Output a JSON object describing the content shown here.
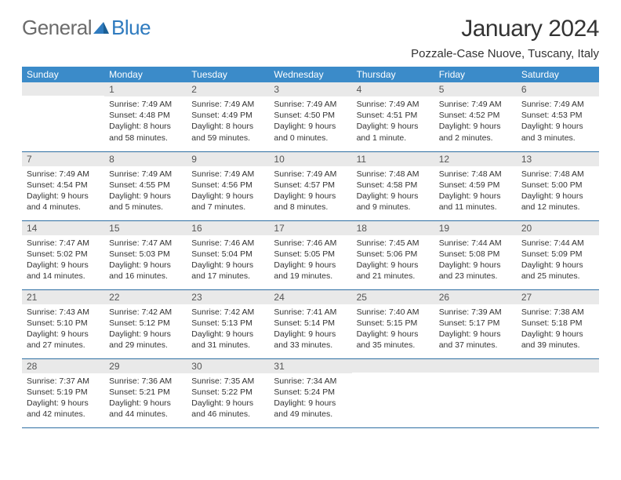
{
  "brand": {
    "part1": "General",
    "part2": "Blue"
  },
  "title": "January 2024",
  "location": "Pozzale-Case Nuove, Tuscany, Italy",
  "colors": {
    "header_bg": "#3b8bc9",
    "header_text": "#ffffff",
    "daynum_bg": "#e9e9e9",
    "row_border": "#2f6fa3",
    "logo_gray": "#6b6b6b",
    "logo_blue": "#2f7bbf",
    "text": "#333333",
    "background": "#ffffff"
  },
  "typography": {
    "title_fontsize": 30,
    "location_fontsize": 15,
    "dayhead_fontsize": 12,
    "cell_fontsize": 10.5
  },
  "day_headers": [
    "Sunday",
    "Monday",
    "Tuesday",
    "Wednesday",
    "Thursday",
    "Friday",
    "Saturday"
  ],
  "weeks": [
    [
      {
        "n": "",
        "sr": "",
        "ss": "",
        "dl": ""
      },
      {
        "n": "1",
        "sr": "Sunrise: 7:49 AM",
        "ss": "Sunset: 4:48 PM",
        "dl": "Daylight: 8 hours and 58 minutes."
      },
      {
        "n": "2",
        "sr": "Sunrise: 7:49 AM",
        "ss": "Sunset: 4:49 PM",
        "dl": "Daylight: 8 hours and 59 minutes."
      },
      {
        "n": "3",
        "sr": "Sunrise: 7:49 AM",
        "ss": "Sunset: 4:50 PM",
        "dl": "Daylight: 9 hours and 0 minutes."
      },
      {
        "n": "4",
        "sr": "Sunrise: 7:49 AM",
        "ss": "Sunset: 4:51 PM",
        "dl": "Daylight: 9 hours and 1 minute."
      },
      {
        "n": "5",
        "sr": "Sunrise: 7:49 AM",
        "ss": "Sunset: 4:52 PM",
        "dl": "Daylight: 9 hours and 2 minutes."
      },
      {
        "n": "6",
        "sr": "Sunrise: 7:49 AM",
        "ss": "Sunset: 4:53 PM",
        "dl": "Daylight: 9 hours and 3 minutes."
      }
    ],
    [
      {
        "n": "7",
        "sr": "Sunrise: 7:49 AM",
        "ss": "Sunset: 4:54 PM",
        "dl": "Daylight: 9 hours and 4 minutes."
      },
      {
        "n": "8",
        "sr": "Sunrise: 7:49 AM",
        "ss": "Sunset: 4:55 PM",
        "dl": "Daylight: 9 hours and 5 minutes."
      },
      {
        "n": "9",
        "sr": "Sunrise: 7:49 AM",
        "ss": "Sunset: 4:56 PM",
        "dl": "Daylight: 9 hours and 7 minutes."
      },
      {
        "n": "10",
        "sr": "Sunrise: 7:49 AM",
        "ss": "Sunset: 4:57 PM",
        "dl": "Daylight: 9 hours and 8 minutes."
      },
      {
        "n": "11",
        "sr": "Sunrise: 7:48 AM",
        "ss": "Sunset: 4:58 PM",
        "dl": "Daylight: 9 hours and 9 minutes."
      },
      {
        "n": "12",
        "sr": "Sunrise: 7:48 AM",
        "ss": "Sunset: 4:59 PM",
        "dl": "Daylight: 9 hours and 11 minutes."
      },
      {
        "n": "13",
        "sr": "Sunrise: 7:48 AM",
        "ss": "Sunset: 5:00 PM",
        "dl": "Daylight: 9 hours and 12 minutes."
      }
    ],
    [
      {
        "n": "14",
        "sr": "Sunrise: 7:47 AM",
        "ss": "Sunset: 5:02 PM",
        "dl": "Daylight: 9 hours and 14 minutes."
      },
      {
        "n": "15",
        "sr": "Sunrise: 7:47 AM",
        "ss": "Sunset: 5:03 PM",
        "dl": "Daylight: 9 hours and 16 minutes."
      },
      {
        "n": "16",
        "sr": "Sunrise: 7:46 AM",
        "ss": "Sunset: 5:04 PM",
        "dl": "Daylight: 9 hours and 17 minutes."
      },
      {
        "n": "17",
        "sr": "Sunrise: 7:46 AM",
        "ss": "Sunset: 5:05 PM",
        "dl": "Daylight: 9 hours and 19 minutes."
      },
      {
        "n": "18",
        "sr": "Sunrise: 7:45 AM",
        "ss": "Sunset: 5:06 PM",
        "dl": "Daylight: 9 hours and 21 minutes."
      },
      {
        "n": "19",
        "sr": "Sunrise: 7:44 AM",
        "ss": "Sunset: 5:08 PM",
        "dl": "Daylight: 9 hours and 23 minutes."
      },
      {
        "n": "20",
        "sr": "Sunrise: 7:44 AM",
        "ss": "Sunset: 5:09 PM",
        "dl": "Daylight: 9 hours and 25 minutes."
      }
    ],
    [
      {
        "n": "21",
        "sr": "Sunrise: 7:43 AM",
        "ss": "Sunset: 5:10 PM",
        "dl": "Daylight: 9 hours and 27 minutes."
      },
      {
        "n": "22",
        "sr": "Sunrise: 7:42 AM",
        "ss": "Sunset: 5:12 PM",
        "dl": "Daylight: 9 hours and 29 minutes."
      },
      {
        "n": "23",
        "sr": "Sunrise: 7:42 AM",
        "ss": "Sunset: 5:13 PM",
        "dl": "Daylight: 9 hours and 31 minutes."
      },
      {
        "n": "24",
        "sr": "Sunrise: 7:41 AM",
        "ss": "Sunset: 5:14 PM",
        "dl": "Daylight: 9 hours and 33 minutes."
      },
      {
        "n": "25",
        "sr": "Sunrise: 7:40 AM",
        "ss": "Sunset: 5:15 PM",
        "dl": "Daylight: 9 hours and 35 minutes."
      },
      {
        "n": "26",
        "sr": "Sunrise: 7:39 AM",
        "ss": "Sunset: 5:17 PM",
        "dl": "Daylight: 9 hours and 37 minutes."
      },
      {
        "n": "27",
        "sr": "Sunrise: 7:38 AM",
        "ss": "Sunset: 5:18 PM",
        "dl": "Daylight: 9 hours and 39 minutes."
      }
    ],
    [
      {
        "n": "28",
        "sr": "Sunrise: 7:37 AM",
        "ss": "Sunset: 5:19 PM",
        "dl": "Daylight: 9 hours and 42 minutes."
      },
      {
        "n": "29",
        "sr": "Sunrise: 7:36 AM",
        "ss": "Sunset: 5:21 PM",
        "dl": "Daylight: 9 hours and 44 minutes."
      },
      {
        "n": "30",
        "sr": "Sunrise: 7:35 AM",
        "ss": "Sunset: 5:22 PM",
        "dl": "Daylight: 9 hours and 46 minutes."
      },
      {
        "n": "31",
        "sr": "Sunrise: 7:34 AM",
        "ss": "Sunset: 5:24 PM",
        "dl": "Daylight: 9 hours and 49 minutes."
      },
      {
        "n": "",
        "sr": "",
        "ss": "",
        "dl": ""
      },
      {
        "n": "",
        "sr": "",
        "ss": "",
        "dl": ""
      },
      {
        "n": "",
        "sr": "",
        "ss": "",
        "dl": ""
      }
    ]
  ]
}
